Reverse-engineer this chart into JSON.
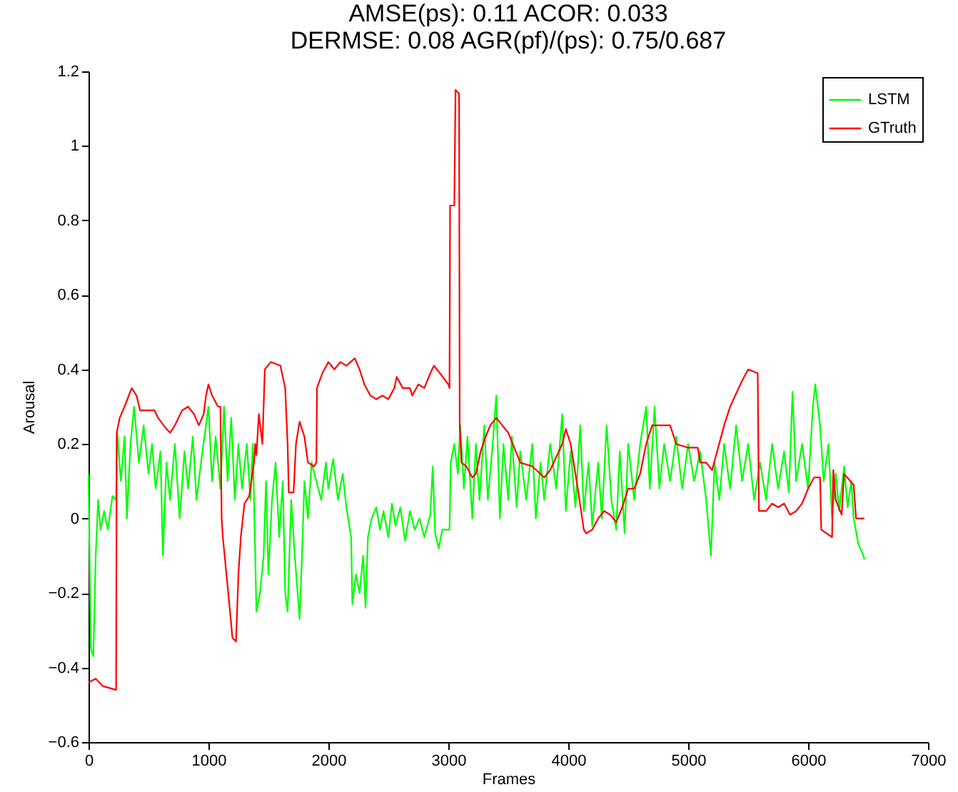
{
  "chart_data": {
    "type": "line",
    "title": "AMSE(ps): 0.11 ACOR: 0.033",
    "subtitle": "DERMSE: 0.08 AGR(pf)/(ps): 0.75/0.687",
    "xlabel": "Frames",
    "ylabel": "Arousal",
    "xlim": [
      0,
      7000
    ],
    "xticks": [
      0,
      1000,
      2000,
      3000,
      4000,
      5000,
      6000,
      7000
    ],
    "ylim": [
      -0.6,
      1.2
    ],
    "yticks": [
      -0.6,
      -0.4,
      -0.2,
      0,
      0.2,
      0.4,
      0.6,
      0.8,
      1,
      1.2
    ],
    "grid": false,
    "legend": "top right",
    "series": [
      {
        "name": "LSTM",
        "color": "#00ff00",
        "x": [
          0,
          20,
          40,
          60,
          80,
          100,
          130,
          160,
          200,
          230,
          240,
          270,
          300,
          320,
          350,
          380,
          420,
          460,
          500,
          530,
          560,
          600,
          620,
          650,
          680,
          720,
          760,
          800,
          830,
          870,
          900,
          950,
          1000,
          1030,
          1060,
          1100,
          1130,
          1160,
          1190,
          1220,
          1250,
          1280,
          1320,
          1350,
          1370,
          1390,
          1400,
          1430,
          1460,
          1480,
          1500,
          1530,
          1560,
          1590,
          1620,
          1640,
          1660,
          1690,
          1720,
          1760,
          1780,
          1800,
          1830,
          1860,
          1900,
          1940,
          1980,
          2000,
          2040,
          2080,
          2120,
          2150,
          2190,
          2200,
          2230,
          2260,
          2290,
          2310,
          2330,
          2360,
          2400,
          2430,
          2460,
          2500,
          2530,
          2560,
          2600,
          2640,
          2680,
          2720,
          2760,
          2800,
          2850,
          2870,
          2890,
          2920,
          2950,
          3000,
          3010,
          3020,
          3050,
          3080,
          3100,
          3130,
          3160,
          3200,
          3230,
          3260,
          3300,
          3330,
          3370,
          3400,
          3430,
          3460,
          3500,
          3530,
          3570,
          3600,
          3650,
          3700,
          3730,
          3770,
          3800,
          3850,
          3900,
          3950,
          3980,
          4020,
          4060,
          4100,
          4130,
          4170,
          4200,
          4250,
          4280,
          4320,
          4360,
          4400,
          4430,
          4470,
          4500,
          4550,
          4600,
          4650,
          4680,
          4720,
          4760,
          4800,
          4850,
          4900,
          4950,
          5000,
          5050,
          5100,
          5150,
          5190,
          5220,
          5260,
          5300,
          5350,
          5400,
          5450,
          5500,
          5550,
          5600,
          5650,
          5700,
          5750,
          5800,
          5840,
          5870,
          5900,
          5950,
          6000,
          6040,
          6060,
          6100,
          6130,
          6170,
          6200,
          6230,
          6260,
          6300,
          6330,
          6360,
          6380,
          6420,
          6450,
          6470
        ],
        "values": [
          0.12,
          -0.35,
          -0.37,
          -0.1,
          0.05,
          -0.03,
          0.02,
          -0.03,
          0.06,
          0.05,
          0.23,
          0.1,
          0.22,
          0.0,
          0.2,
          0.3,
          0.15,
          0.25,
          0.12,
          0.2,
          0.08,
          0.18,
          -0.1,
          0.15,
          0.05,
          0.2,
          0.0,
          0.18,
          0.08,
          0.22,
          0.05,
          0.18,
          0.3,
          0.1,
          0.22,
          0.08,
          0.3,
          0.1,
          0.27,
          0.05,
          0.2,
          0.08,
          0.2,
          0.05,
          0.2,
          -0.1,
          -0.25,
          -0.2,
          -0.1,
          0.1,
          -0.15,
          0.05,
          0.15,
          -0.05,
          0.1,
          -0.2,
          -0.25,
          0.05,
          -0.1,
          -0.27,
          -0.1,
          0.1,
          0.0,
          0.15,
          0.1,
          0.05,
          0.15,
          0.08,
          0.16,
          0.05,
          0.12,
          0.03,
          -0.05,
          -0.23,
          -0.15,
          -0.2,
          -0.1,
          -0.24,
          -0.05,
          0.0,
          0.03,
          -0.03,
          0.02,
          -0.05,
          0.04,
          -0.02,
          0.03,
          -0.06,
          0.02,
          -0.03,
          0.0,
          -0.05,
          0.01,
          0.14,
          -0.04,
          -0.08,
          -0.03,
          -0.03,
          -0.03,
          0.15,
          0.2,
          0.12,
          0.25,
          0.08,
          0.22,
          0.0,
          0.2,
          0.05,
          0.25,
          0.05,
          0.2,
          0.33,
          0.0,
          0.2,
          0.05,
          0.22,
          0.03,
          0.18,
          0.05,
          0.2,
          0.0,
          0.15,
          0.05,
          0.2,
          0.08,
          0.28,
          0.02,
          0.18,
          0.03,
          0.25,
          0.02,
          0.15,
          -0.02,
          0.15,
          0.0,
          0.25,
          0.05,
          -0.03,
          0.18,
          -0.04,
          0.2,
          0.05,
          0.2,
          0.3,
          0.08,
          0.3,
          0.08,
          0.2,
          0.1,
          0.22,
          0.08,
          0.2,
          0.1,
          0.18,
          0.05,
          -0.1,
          0.15,
          0.05,
          0.2,
          0.08,
          0.25,
          0.1,
          0.2,
          0.05,
          0.15,
          0.05,
          0.2,
          0.08,
          0.18,
          0.07,
          0.34,
          0.1,
          0.2,
          0.08,
          0.3,
          0.36,
          0.25,
          0.1,
          0.2,
          0.0,
          0.12,
          0.02,
          0.14,
          0.03,
          0.1,
          0.0,
          -0.07,
          -0.09,
          -0.11
        ]
      },
      {
        "name": "GTruth",
        "color": "#ff0000",
        "x": [
          0,
          60,
          120,
          230,
          235,
          260,
          300,
          360,
          400,
          430,
          550,
          580,
          650,
          680,
          720,
          780,
          830,
          880,
          920,
          960,
          980,
          1000,
          1030,
          1080,
          1100,
          1110,
          1120,
          1150,
          1180,
          1200,
          1230,
          1250,
          1270,
          1300,
          1320,
          1340,
          1380,
          1390,
          1400,
          1420,
          1450,
          1470,
          1520,
          1600,
          1640,
          1660,
          1670,
          1710,
          1730,
          1760,
          1800,
          1830,
          1880,
          1900,
          1905,
          1950,
          2000,
          2050,
          2100,
          2150,
          2220,
          2260,
          2300,
          2350,
          2400,
          2450,
          2500,
          2550,
          2570,
          2620,
          2680,
          2700,
          2750,
          2800,
          2850,
          2880,
          2930,
          3000,
          3010,
          3015,
          3050,
          3060,
          3090,
          3095,
          3110,
          3150,
          3200,
          3230,
          3270,
          3300,
          3350,
          3400,
          3450,
          3500,
          3550,
          3600,
          3700,
          3800,
          3850,
          3950,
          3980,
          4020,
          4080,
          4130,
          4150,
          4200,
          4250,
          4300,
          4350,
          4400,
          4450,
          4500,
          4550,
          4600,
          4650,
          4700,
          4850,
          4900,
          5000,
          5080,
          5100,
          5150,
          5200,
          5300,
          5350,
          5450,
          5500,
          5580,
          5590,
          5650,
          5700,
          5750,
          5800,
          5850,
          5900,
          5950,
          6000,
          6050,
          6100,
          6110,
          6200,
          6210,
          6230,
          6280,
          6300,
          6380,
          6400,
          6470
        ],
        "values": [
          -0.44,
          -0.43,
          -0.45,
          -0.46,
          0.23,
          0.27,
          0.3,
          0.35,
          0.33,
          0.29,
          0.29,
          0.27,
          0.24,
          0.23,
          0.25,
          0.29,
          0.3,
          0.28,
          0.25,
          0.28,
          0.33,
          0.36,
          0.33,
          0.3,
          0.3,
          0.0,
          -0.05,
          -0.15,
          -0.25,
          -0.32,
          -0.33,
          -0.15,
          -0.05,
          0.04,
          0.05,
          0.06,
          0.15,
          0.2,
          0.17,
          0.28,
          0.2,
          0.4,
          0.42,
          0.41,
          0.35,
          0.2,
          0.07,
          0.07,
          0.2,
          0.26,
          0.22,
          0.15,
          0.14,
          0.15,
          0.35,
          0.39,
          0.42,
          0.4,
          0.42,
          0.41,
          0.43,
          0.4,
          0.36,
          0.33,
          0.32,
          0.33,
          0.32,
          0.35,
          0.38,
          0.35,
          0.35,
          0.33,
          0.36,
          0.35,
          0.39,
          0.41,
          0.39,
          0.36,
          0.35,
          0.84,
          0.84,
          1.15,
          1.14,
          0.25,
          0.15,
          0.14,
          0.11,
          0.12,
          0.18,
          0.21,
          0.25,
          0.27,
          0.25,
          0.23,
          0.19,
          0.15,
          0.14,
          0.11,
          0.13,
          0.2,
          0.24,
          0.2,
          0.08,
          -0.03,
          -0.04,
          -0.03,
          0.0,
          0.02,
          0.01,
          -0.01,
          0.03,
          0.08,
          0.08,
          0.12,
          0.2,
          0.25,
          0.25,
          0.2,
          0.19,
          0.19,
          0.15,
          0.15,
          0.13,
          0.25,
          0.3,
          0.37,
          0.4,
          0.39,
          0.02,
          0.02,
          0.04,
          0.03,
          0.04,
          0.01,
          0.02,
          0.04,
          0.08,
          0.11,
          0.11,
          -0.03,
          -0.05,
          0.13,
          0.05,
          0.01,
          0.12,
          0.09,
          0.0,
          0.0
        ]
      }
    ]
  }
}
